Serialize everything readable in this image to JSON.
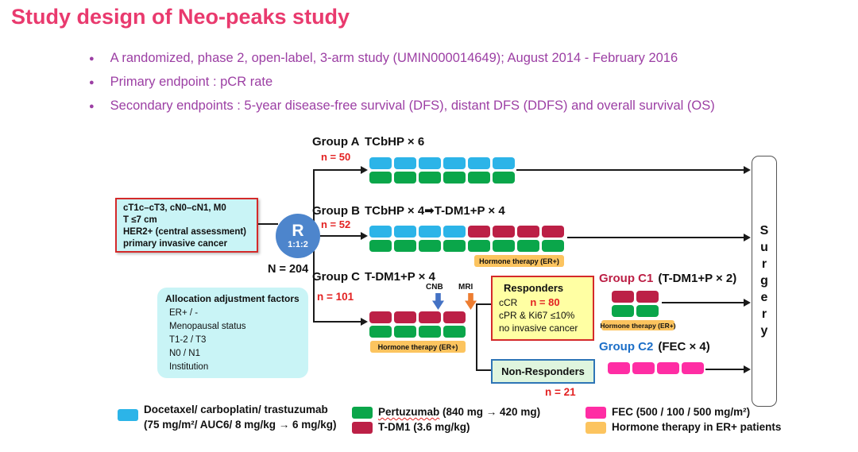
{
  "slide": {
    "title": "Study design of Neo-peaks study",
    "bullets": [
      "A randomized, phase 2, open-label, 3-arm study (UMIN000014649); August 2014 - February 2016",
      "Primary endpoint : pCR rate",
      "Secondary endpoints : 5-year disease-free survival (DFS), distant DFS (DDFS) and overall survival (OS)"
    ]
  },
  "colors": {
    "title_pink": "#e93a6e",
    "purple": "#9c3fa4",
    "blue": "#2cb4e8",
    "green": "#0aa64a",
    "crimson": "#bc2046",
    "pink": "#ff2da4",
    "orange": "#fcc45f",
    "rcircle": "#4d85cc",
    "red_text": "#e32222",
    "cyan_box": "#c9f4f6",
    "yellow_box": "#ffffa3",
    "nr_green": "#dff5de",
    "nr_border": "#2e75b6",
    "red_border": "#d42a2a",
    "line": "#1a1a1a",
    "c2_blue": "#1c6fc8",
    "cnb_blue": "#4472c4",
    "mri_orange": "#ed7d31"
  },
  "eligibility": {
    "lines": [
      "cT1c–cT3, cN0–cN1, M0",
      "T ≤7 cm",
      "HER2+ (central assessment)",
      "primary invasive cancer"
    ]
  },
  "randomization": {
    "letter": "R",
    "ratio": "1:1:2",
    "n_total": "N = 204"
  },
  "allocation": {
    "title": "Allocation adjustment factors",
    "items": [
      "ER+ / -",
      "Menopausal status",
      "T1-2 / T3",
      "N0 / N1",
      "Institution"
    ]
  },
  "hormone_label": "Hormone therapy (ER+)",
  "groups": {
    "a": {
      "name": "Group A",
      "regimen": "TCbHP × 6",
      "n": "n = 50",
      "rows": {
        "top": [
          {
            "color": "blue",
            "count": 6
          }
        ],
        "bottom": [
          {
            "color": "green",
            "count": 6
          }
        ]
      }
    },
    "b": {
      "name": "Group B",
      "regimen": "TCbHP × 4➡T-DM1+P × 4",
      "n": "n = 52",
      "rows": {
        "top": [
          {
            "color": "blue",
            "count": 4
          },
          {
            "color": "crimson",
            "count": 4
          }
        ],
        "bottom": [
          {
            "color": "green",
            "count": 8
          }
        ]
      }
    },
    "c": {
      "name": "Group C",
      "regimen": "T-DM1+P × 4",
      "n": "n = 101",
      "cnb": "CNB",
      "mri": "MRI",
      "rows": {
        "top": [
          {
            "color": "crimson",
            "count": 4
          }
        ],
        "bottom": [
          {
            "color": "green",
            "count": 4
          }
        ]
      }
    },
    "c1": {
      "name": "Group C1",
      "regimen": "(T-DM1+P × 2)",
      "rows": {
        "top": [
          {
            "color": "crimson",
            "count": 2
          }
        ],
        "bottom": [
          {
            "color": "green",
            "count": 2
          }
        ]
      }
    },
    "c2": {
      "name": "Group C2",
      "regimen": "(FEC × 4)",
      "rows": {
        "top": [
          {
            "color": "pink",
            "count": 4
          }
        ]
      }
    }
  },
  "responders": {
    "title": "Responders",
    "criteria1": "cCR",
    "n": "n = 80",
    "criteria2": "cPR & Ki67 ≤10%",
    "criteria3": "no invasive cancer"
  },
  "non_responders": {
    "title": "Non-Responders",
    "n": "n = 21"
  },
  "surgery": {
    "label": "Surgery"
  },
  "legend": {
    "tcbh": {
      "swatch": "blue",
      "line1": "Docetaxel/ carboplatin/ trastuzumab",
      "line2": "(75 mg/m²/ AUC6/ 8 mg/kg → 6 mg/kg)"
    },
    "pertuzumab": {
      "swatch": "green",
      "word": "Pertuzumab",
      "rest": " (840 mg → 420 mg)"
    },
    "tdm1": {
      "swatch": "crimson",
      "label": "T-DM1 (3.6 mg/kg)"
    },
    "fec": {
      "swatch": "pink",
      "label": "FEC (500 / 100 / 500 mg/m²)"
    },
    "hormone": {
      "swatch": "orange",
      "label": "Hormone therapy in ER+ patients"
    }
  }
}
